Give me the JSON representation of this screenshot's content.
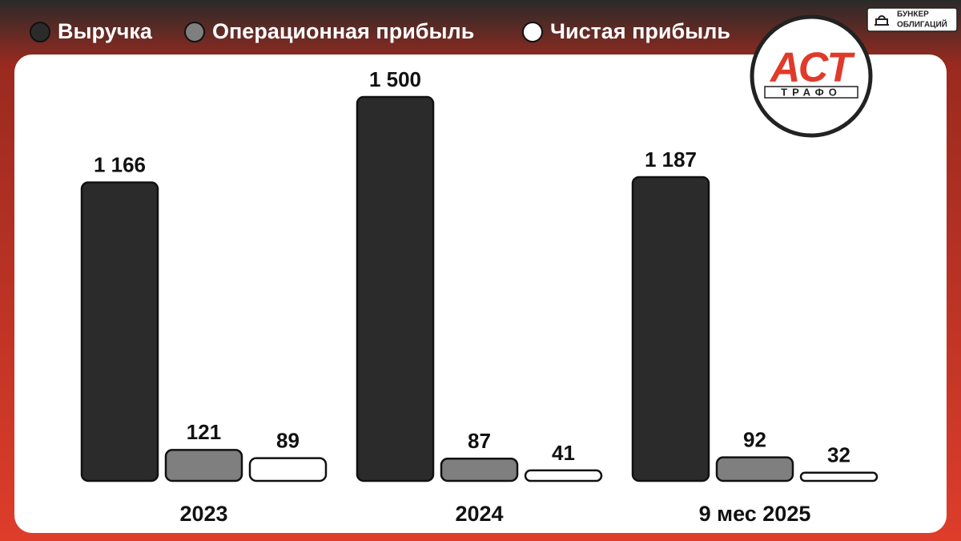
{
  "chart_data": {
    "type": "bar",
    "categories": [
      "2023",
      "2024",
      "9 мес 2025"
    ],
    "series": [
      {
        "name": "Выручка",
        "color": "#2b2b2b",
        "values": [
          1166,
          1500,
          1187
        ],
        "value_labels": [
          "1 166",
          "1 500",
          "1 187"
        ]
      },
      {
        "name": "Операционная прибыль",
        "color": "#7f7f7f",
        "values": [
          121,
          87,
          92
        ]
      },
      {
        "name": "Чистая прибыль",
        "color": "#ffffff",
        "values": [
          89,
          41,
          32
        ]
      }
    ],
    "ylim": [
      0,
      1500
    ]
  },
  "logo": {
    "main": "АСТ",
    "sub": "ТРАФО"
  },
  "brand": [
    "БУНКЕР",
    "ОБЛИГАЦИЙ"
  ]
}
